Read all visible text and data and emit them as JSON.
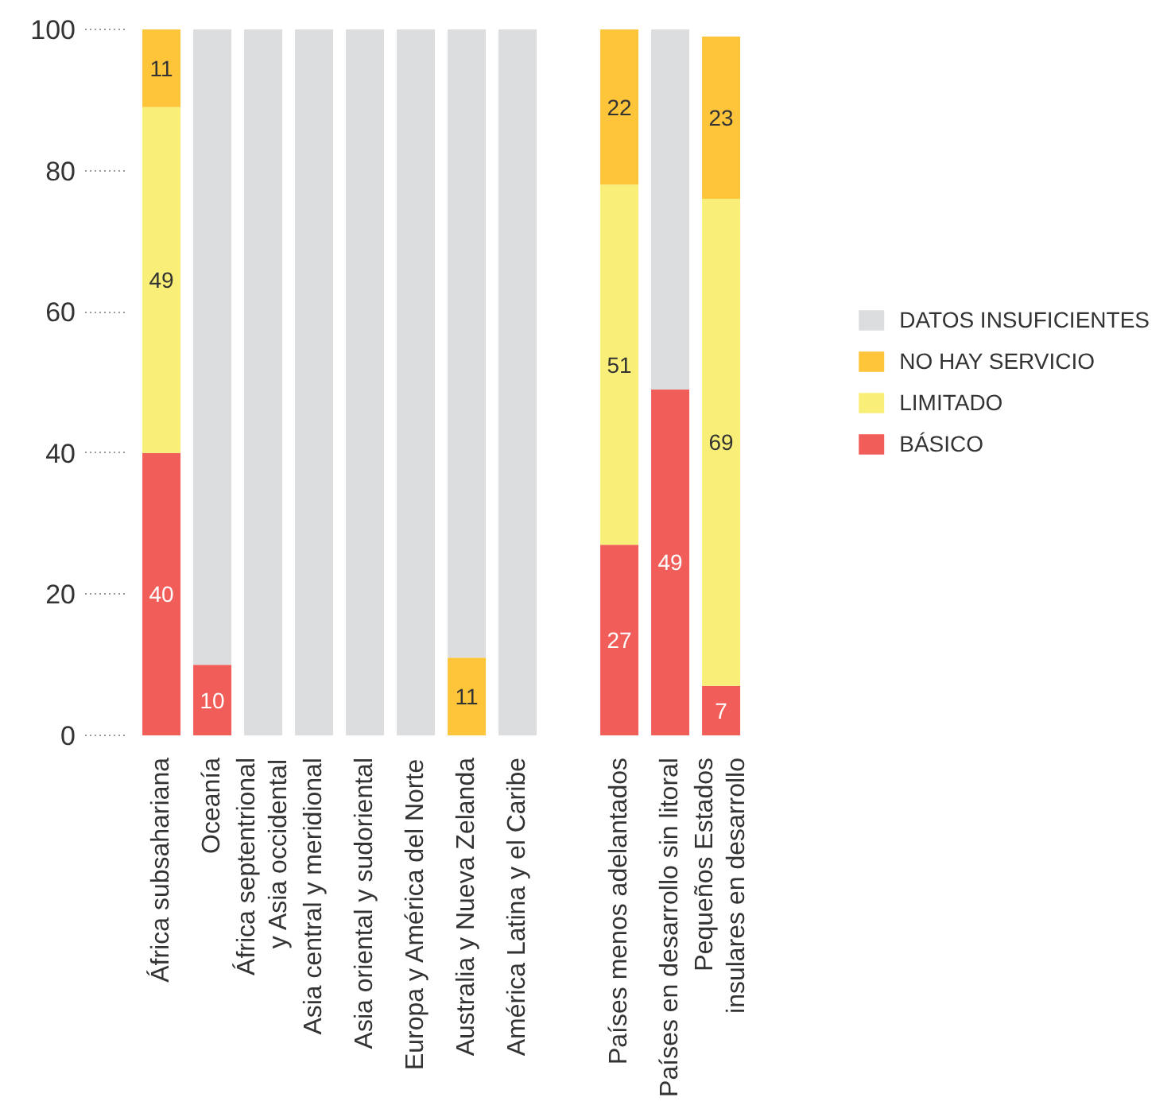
{
  "chart_data": {
    "type": "bar",
    "stacked": true,
    "categories": [
      "África subsahariana",
      "Oceanía",
      "África septentrional\ny Asia occidental",
      "Asia central y meridional",
      "Asia oriental y sudoriental",
      "Europa y América del Norte",
      "Australia y Nueva Zelanda",
      "América Latina y el Caribe",
      null,
      "Países menos adelantados",
      "Países en desarrollo sin litoral",
      "Pequeños Estados\ninsulares en desarrollo"
    ],
    "series": [
      {
        "name": "BÁSICO",
        "color": "#f15d59",
        "values": [
          40,
          10,
          null,
          null,
          null,
          null,
          null,
          null,
          null,
          27,
          49,
          7
        ],
        "value_labels": [
          "40",
          "10",
          null,
          null,
          null,
          null,
          null,
          null,
          null,
          "27",
          "49",
          "7"
        ]
      },
      {
        "name": "LIMITADO",
        "color": "#f9ef78",
        "values": [
          49,
          null,
          null,
          null,
          null,
          null,
          null,
          null,
          null,
          51,
          null,
          69
        ],
        "value_labels": [
          "49",
          null,
          null,
          null,
          null,
          null,
          null,
          null,
          null,
          "51",
          null,
          "69"
        ]
      },
      {
        "name": "NO HAY SERVICIO",
        "color": "#fec43a",
        "values": [
          11,
          null,
          null,
          null,
          null,
          null,
          11,
          null,
          null,
          22,
          null,
          23
        ],
        "value_labels": [
          "11",
          null,
          null,
          null,
          null,
          null,
          "11",
          null,
          null,
          "22",
          null,
          "23"
        ]
      },
      {
        "name": "DATOS INSUFICIENTES",
        "color": "#dcdddf",
        "values": [
          null,
          90,
          100,
          100,
          100,
          100,
          89,
          100,
          null,
          null,
          51,
          null
        ]
      }
    ],
    "ylim": [
      0,
      100
    ],
    "yticks": [
      0,
      20,
      40,
      60,
      80,
      100
    ],
    "legend": "right"
  }
}
